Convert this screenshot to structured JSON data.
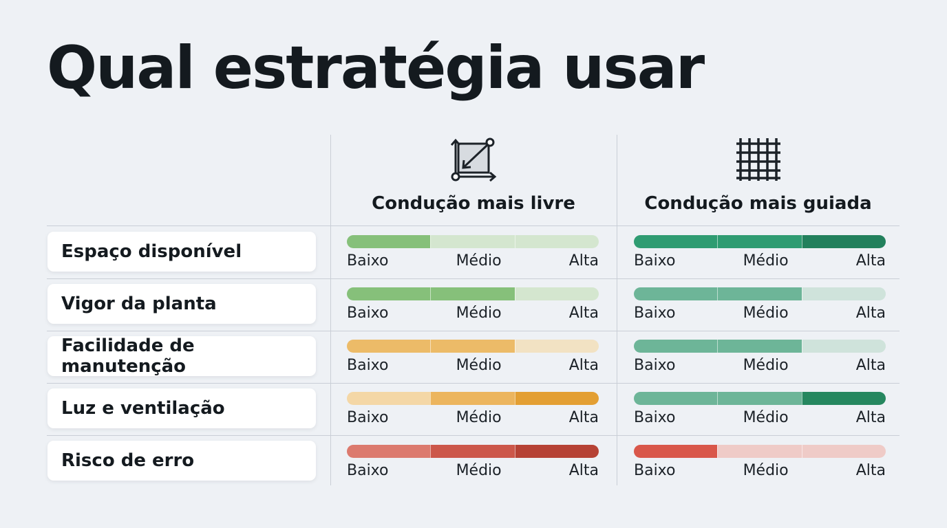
{
  "title": "Qual estratégia usar",
  "columns": [
    {
      "label": "Condução mais livre",
      "icon": "free-form-frame-icon"
    },
    {
      "label": "Condução mais guiada",
      "icon": "grid-trellis-icon"
    }
  ],
  "scale": [
    "Baixo",
    "Médio",
    "Alta"
  ],
  "rows": [
    {
      "label": "Espaço disponível",
      "free": {
        "level": 1,
        "colors": [
          "#86c07a",
          "#d4e6cf",
          "#d4e6cf"
        ]
      },
      "guided": {
        "level": 3,
        "colors": [
          "#2f9c72",
          "#2f9c72",
          "#22805c"
        ]
      }
    },
    {
      "label": "Vigor da planta",
      "free": {
        "level": 2,
        "colors": [
          "#86c07a",
          "#86c07a",
          "#d4e6cf"
        ]
      },
      "guided": {
        "level": 2,
        "colors": [
          "#6db598",
          "#6db598",
          "#cfe3db"
        ]
      }
    },
    {
      "label": "Facilidade de manutenção",
      "free": {
        "level": 2,
        "colors": [
          "#ecbb68",
          "#ecbb68",
          "#f2e2c3"
        ]
      },
      "guided": {
        "level": 2,
        "colors": [
          "#6db598",
          "#6db598",
          "#cfe3db"
        ]
      }
    },
    {
      "label": "Luz e ventilação",
      "free": {
        "level": 3,
        "colors": [
          "#f4d7a6",
          "#ecb55e",
          "#e39f33"
        ]
      },
      "guided": {
        "level": 3,
        "colors": [
          "#6db598",
          "#6db598",
          "#26875f"
        ]
      }
    },
    {
      "label": "Risco de erro",
      "free": {
        "level": 3,
        "colors": [
          "#dc7a6e",
          "#cc574a",
          "#b64235"
        ]
      },
      "guided": {
        "level": 1,
        "colors": [
          "#d9574a",
          "#efcbc7",
          "#efcbc7"
        ]
      }
    }
  ]
}
